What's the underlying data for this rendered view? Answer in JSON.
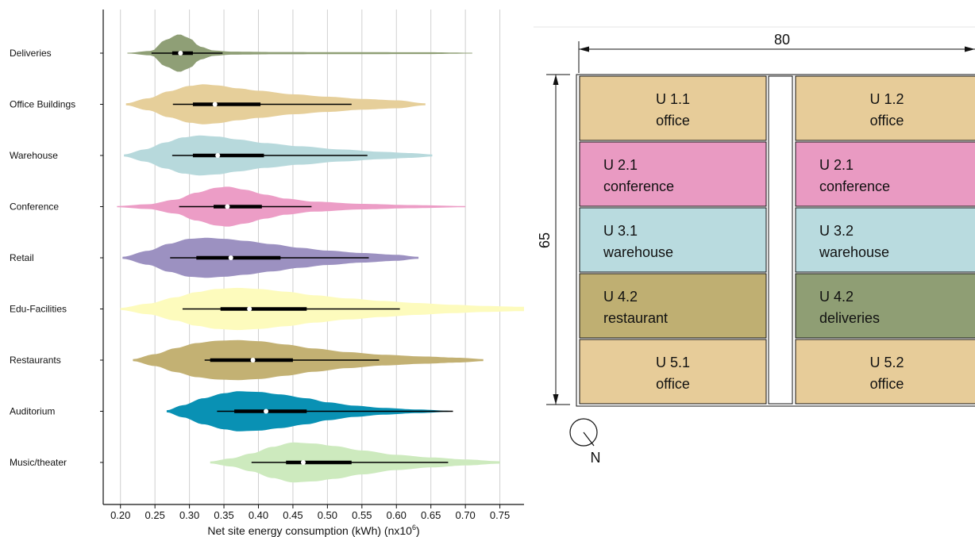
{
  "chart_data": {
    "type": "violin",
    "xlabel_main": "Net site energy consumption (kWh) (nx10",
    "xlabel_sup": "6",
    "xlabel_end": ")",
    "xlim": [
      0.175,
      0.785
    ],
    "ticks": [
      0.2,
      0.25,
      0.3,
      0.35,
      0.4,
      0.45,
      0.5,
      0.55,
      0.6,
      0.65,
      0.7,
      0.75
    ],
    "tick_labels": [
      "0.20",
      "0.25",
      "0.30",
      "0.35",
      "0.40",
      "0.45",
      "0.50",
      "0.55",
      "0.60",
      "0.65",
      "0.70",
      "0.75"
    ],
    "grid": "vertical",
    "series": [
      {
        "name": "Deliveries",
        "color": "#8f9f76",
        "min": 0.21,
        "max": 0.71,
        "q1": 0.275,
        "median": 0.287,
        "q3": 0.305,
        "wlo": 0.245,
        "whi": 0.348,
        "width": 0.85,
        "density": [
          [
            0.21,
            0.02
          ],
          [
            0.245,
            0.12
          ],
          [
            0.265,
            0.7
          ],
          [
            0.285,
            1.0
          ],
          [
            0.3,
            0.8
          ],
          [
            0.315,
            0.35
          ],
          [
            0.335,
            0.14
          ],
          [
            0.36,
            0.08
          ],
          [
            0.42,
            0.06
          ],
          [
            0.55,
            0.05
          ],
          [
            0.65,
            0.045
          ],
          [
            0.71,
            0.02
          ]
        ]
      },
      {
        "name": "Office Buildings",
        "color": "#e6cf9a",
        "min": 0.208,
        "max": 0.642,
        "q1": 0.305,
        "median": 0.337,
        "q3": 0.403,
        "wlo": 0.276,
        "whi": 0.535,
        "width": 0.9,
        "density": [
          [
            0.208,
            0.05
          ],
          [
            0.24,
            0.3
          ],
          [
            0.27,
            0.65
          ],
          [
            0.3,
            0.92
          ],
          [
            0.32,
            1.0
          ],
          [
            0.34,
            0.95
          ],
          [
            0.37,
            0.8
          ],
          [
            0.4,
            0.68
          ],
          [
            0.45,
            0.5
          ],
          [
            0.5,
            0.38
          ],
          [
            0.55,
            0.27
          ],
          [
            0.6,
            0.2
          ],
          [
            0.642,
            0.05
          ]
        ]
      },
      {
        "name": "Warehouse",
        "color": "#b7d9dc",
        "min": 0.205,
        "max": 0.652,
        "q1": 0.305,
        "median": 0.341,
        "q3": 0.408,
        "wlo": 0.275,
        "whi": 0.558,
        "width": 0.9,
        "density": [
          [
            0.205,
            0.05
          ],
          [
            0.235,
            0.3
          ],
          [
            0.265,
            0.65
          ],
          [
            0.29,
            0.9
          ],
          [
            0.315,
            1.0
          ],
          [
            0.34,
            0.95
          ],
          [
            0.37,
            0.8
          ],
          [
            0.41,
            0.62
          ],
          [
            0.46,
            0.46
          ],
          [
            0.52,
            0.3
          ],
          [
            0.58,
            0.18
          ],
          [
            0.62,
            0.12
          ],
          [
            0.652,
            0.05
          ]
        ]
      },
      {
        "name": "Conference",
        "color": "#ec9dc6",
        "min": 0.195,
        "max": 0.7,
        "q1": 0.335,
        "median": 0.355,
        "q3": 0.405,
        "wlo": 0.285,
        "whi": 0.477,
        "width": 0.9,
        "density": [
          [
            0.195,
            0.03
          ],
          [
            0.24,
            0.12
          ],
          [
            0.28,
            0.35
          ],
          [
            0.31,
            0.7
          ],
          [
            0.34,
            0.95
          ],
          [
            0.355,
            1.0
          ],
          [
            0.38,
            0.85
          ],
          [
            0.41,
            0.6
          ],
          [
            0.44,
            0.4
          ],
          [
            0.48,
            0.25
          ],
          [
            0.55,
            0.14
          ],
          [
            0.62,
            0.08
          ],
          [
            0.7,
            0.03
          ]
        ]
      },
      {
        "name": "Retail",
        "color": "#9c91c1",
        "min": 0.203,
        "max": 0.632,
        "q1": 0.31,
        "median": 0.36,
        "q3": 0.432,
        "wlo": 0.272,
        "whi": 0.56,
        "width": 0.9,
        "density": [
          [
            0.203,
            0.05
          ],
          [
            0.24,
            0.35
          ],
          [
            0.27,
            0.7
          ],
          [
            0.3,
            0.95
          ],
          [
            0.325,
            1.0
          ],
          [
            0.35,
            0.95
          ],
          [
            0.38,
            0.85
          ],
          [
            0.42,
            0.68
          ],
          [
            0.46,
            0.5
          ],
          [
            0.5,
            0.36
          ],
          [
            0.55,
            0.24
          ],
          [
            0.6,
            0.15
          ],
          [
            0.632,
            0.05
          ]
        ]
      },
      {
        "name": "Edu-Facilities",
        "color": "#fdfbbd",
        "min": 0.2,
        "max": 0.785,
        "q1": 0.345,
        "median": 0.387,
        "q3": 0.47,
        "wlo": 0.29,
        "whi": 0.605,
        "width": 0.95,
        "density": [
          [
            0.2,
            0.05
          ],
          [
            0.24,
            0.25
          ],
          [
            0.28,
            0.55
          ],
          [
            0.31,
            0.8
          ],
          [
            0.34,
            0.95
          ],
          [
            0.37,
            1.0
          ],
          [
            0.4,
            0.95
          ],
          [
            0.44,
            0.82
          ],
          [
            0.48,
            0.65
          ],
          [
            0.53,
            0.5
          ],
          [
            0.58,
            0.38
          ],
          [
            0.63,
            0.28
          ],
          [
            0.68,
            0.2
          ],
          [
            0.73,
            0.14
          ],
          [
            0.785,
            0.1
          ]
        ]
      },
      {
        "name": "Restaurants",
        "color": "#c3b173",
        "min": 0.218,
        "max": 0.726,
        "q1": 0.33,
        "median": 0.392,
        "q3": 0.45,
        "wlo": 0.322,
        "whi": 0.575,
        "width": 0.9,
        "density": [
          [
            0.218,
            0.05
          ],
          [
            0.25,
            0.3
          ],
          [
            0.28,
            0.6
          ],
          [
            0.31,
            0.85
          ],
          [
            0.34,
            0.97
          ],
          [
            0.37,
            1.0
          ],
          [
            0.4,
            0.95
          ],
          [
            0.44,
            0.78
          ],
          [
            0.48,
            0.58
          ],
          [
            0.53,
            0.4
          ],
          [
            0.58,
            0.27
          ],
          [
            0.64,
            0.18
          ],
          [
            0.69,
            0.12
          ],
          [
            0.726,
            0.05
          ]
        ]
      },
      {
        "name": "Auditorium",
        "color": "#0991b4",
        "min": 0.267,
        "max": 0.682,
        "q1": 0.365,
        "median": 0.411,
        "q3": 0.47,
        "wlo": 0.34,
        "whi": 0.682,
        "width": 0.9,
        "density": [
          [
            0.267,
            0.05
          ],
          [
            0.29,
            0.3
          ],
          [
            0.32,
            0.65
          ],
          [
            0.35,
            0.9
          ],
          [
            0.37,
            1.0
          ],
          [
            0.4,
            0.97
          ],
          [
            0.43,
            0.85
          ],
          [
            0.47,
            0.65
          ],
          [
            0.5,
            0.45
          ],
          [
            0.54,
            0.28
          ],
          [
            0.58,
            0.17
          ],
          [
            0.63,
            0.09
          ],
          [
            0.682,
            0.02
          ]
        ]
      },
      {
        "name": "Music/theater",
        "color": "#cdeabe",
        "min": 0.33,
        "max": 0.75,
        "q1": 0.44,
        "median": 0.465,
        "q3": 0.535,
        "wlo": 0.39,
        "whi": 0.675,
        "width": 0.9,
        "density": [
          [
            0.33,
            0.05
          ],
          [
            0.36,
            0.2
          ],
          [
            0.39,
            0.45
          ],
          [
            0.42,
            0.78
          ],
          [
            0.45,
            1.0
          ],
          [
            0.48,
            0.95
          ],
          [
            0.51,
            0.82
          ],
          [
            0.55,
            0.6
          ],
          [
            0.6,
            0.38
          ],
          [
            0.65,
            0.25
          ],
          [
            0.7,
            0.15
          ],
          [
            0.75,
            0.06
          ]
        ]
      }
    ]
  },
  "plan": {
    "width_label": "80",
    "height_label": "65",
    "north_label": "N",
    "units": [
      {
        "id": "U 1.1",
        "use": "office",
        "color": "#e7cc99",
        "align": "center"
      },
      {
        "id": "U 1.2",
        "use": "office",
        "color": "#e7cc99",
        "align": "center"
      },
      {
        "id": "U 2.1",
        "use": "conference",
        "color": "#e99ac2",
        "align": "left"
      },
      {
        "id": "U 2.1",
        "use": "conference",
        "color": "#e99ac2",
        "align": "left"
      },
      {
        "id": "U 3.1",
        "use": "warehouse",
        "color": "#b9dbdf",
        "align": "left"
      },
      {
        "id": "U 3.2",
        "use": "warehouse",
        "color": "#b9dbdf",
        "align": "left"
      },
      {
        "id": "U 4.2",
        "use": "restaurant",
        "color": "#bfaf72",
        "align": "left"
      },
      {
        "id": "U 4.2",
        "use": "deliveries",
        "color": "#8f9e74",
        "align": "left"
      },
      {
        "id": "U 5.1",
        "use": "office",
        "color": "#e7cc99",
        "align": "center"
      },
      {
        "id": "U 5.2",
        "use": "office",
        "color": "#e7cc99",
        "align": "center"
      }
    ]
  }
}
